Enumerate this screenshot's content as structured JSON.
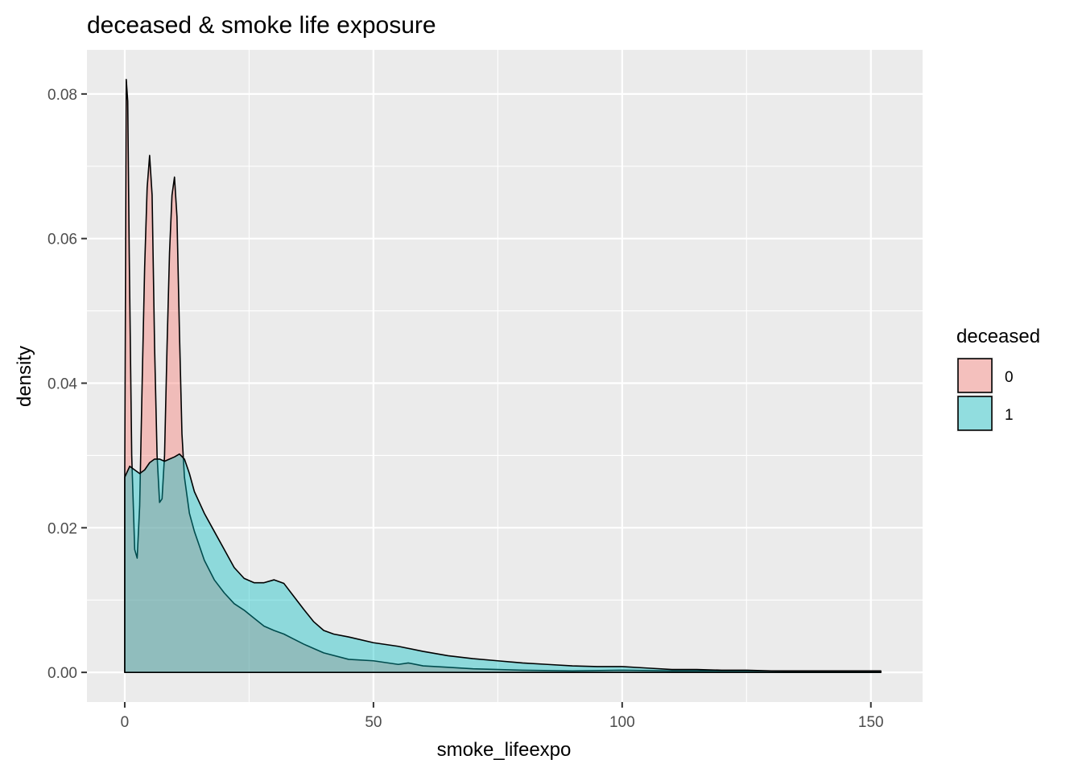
{
  "chart_data": {
    "type": "area",
    "title": "deceased & smoke life exposure",
    "xlabel": "smoke_lifeexpo",
    "ylabel": "density",
    "xlim": [
      -7.6,
      160.4
    ],
    "ylim": [
      -0.0041,
      0.0861
    ],
    "x_ticks": [
      0,
      50,
      100,
      150
    ],
    "x_tick_labels": [
      "0",
      "50",
      "100",
      "150"
    ],
    "y_ticks": [
      0,
      0.02,
      0.04,
      0.06,
      0.08
    ],
    "y_tick_labels": [
      "0.00",
      "0.02",
      "0.04",
      "0.06",
      "0.08"
    ],
    "legend": {
      "title": "deceased",
      "position": "right",
      "entries": [
        {
          "label": "0",
          "color": "#F8766D"
        },
        {
          "label": "1",
          "color": "#00BFC4"
        }
      ]
    },
    "colors": {
      "panel_background": "#EBEBEB",
      "grid": "#FFFFFF",
      "outline": "#000000",
      "fill_alpha": 0.4
    },
    "series": [
      {
        "name": "0",
        "color": "#F8766D",
        "x": [
          0,
          0.3,
          0.6,
          0.9,
          1.4,
          2,
          2.5,
          3,
          3.5,
          4,
          4.5,
          5,
          5.5,
          6,
          6.5,
          7,
          7.5,
          8,
          8.5,
          9,
          9.5,
          10,
          10.5,
          11,
          11.5,
          12,
          12.5,
          13,
          14,
          15,
          16,
          18,
          20,
          22,
          24,
          26,
          28,
          30,
          32,
          34,
          36,
          38,
          40,
          45,
          50,
          55,
          57,
          60,
          65,
          70,
          80,
          90,
          100,
          110,
          120,
          130,
          140,
          152
        ],
        "y": [
          0.0275,
          0.082,
          0.079,
          0.058,
          0.03,
          0.017,
          0.0158,
          0.023,
          0.04,
          0.056,
          0.067,
          0.0715,
          0.066,
          0.045,
          0.03,
          0.0235,
          0.024,
          0.03,
          0.045,
          0.058,
          0.066,
          0.0685,
          0.063,
          0.047,
          0.033,
          0.027,
          0.0245,
          0.022,
          0.0195,
          0.0175,
          0.0155,
          0.0128,
          0.011,
          0.0095,
          0.0086,
          0.0075,
          0.0064,
          0.0058,
          0.0053,
          0.0046,
          0.0039,
          0.0033,
          0.0027,
          0.0018,
          0.0016,
          0.0011,
          0.0013,
          0.0009,
          0.0007,
          0.0005,
          0.0003,
          0.0002,
          0.0003,
          0.0002,
          0.0002,
          0.0002,
          0.0001,
          0.0001
        ]
      },
      {
        "name": "1",
        "color": "#00BFC4",
        "x": [
          0,
          1,
          2,
          3,
          4,
          5,
          6,
          7,
          8,
          9,
          10,
          11,
          12,
          13,
          14,
          15,
          16,
          18,
          20,
          22,
          24,
          26,
          28,
          30,
          32,
          34,
          36,
          38,
          40,
          42,
          45,
          50,
          55,
          60,
          65,
          70,
          75,
          80,
          85,
          90,
          95,
          100,
          105,
          110,
          115,
          120,
          125,
          130,
          135,
          140,
          145,
          152
        ],
        "y": [
          0.027,
          0.0285,
          0.028,
          0.0275,
          0.028,
          0.029,
          0.0295,
          0.0295,
          0.0292,
          0.0295,
          0.0298,
          0.0302,
          0.0295,
          0.0275,
          0.025,
          0.0235,
          0.022,
          0.0195,
          0.017,
          0.0145,
          0.013,
          0.0124,
          0.0124,
          0.0128,
          0.0123,
          0.0105,
          0.0087,
          0.007,
          0.0058,
          0.0053,
          0.0049,
          0.0041,
          0.0036,
          0.0029,
          0.0023,
          0.0019,
          0.0016,
          0.0013,
          0.0011,
          0.0009,
          0.0008,
          0.0008,
          0.0006,
          0.0004,
          0.0004,
          0.0003,
          0.0003,
          0.0002,
          0.0002,
          0.0002,
          0.0002,
          0.0002
        ]
      }
    ]
  }
}
